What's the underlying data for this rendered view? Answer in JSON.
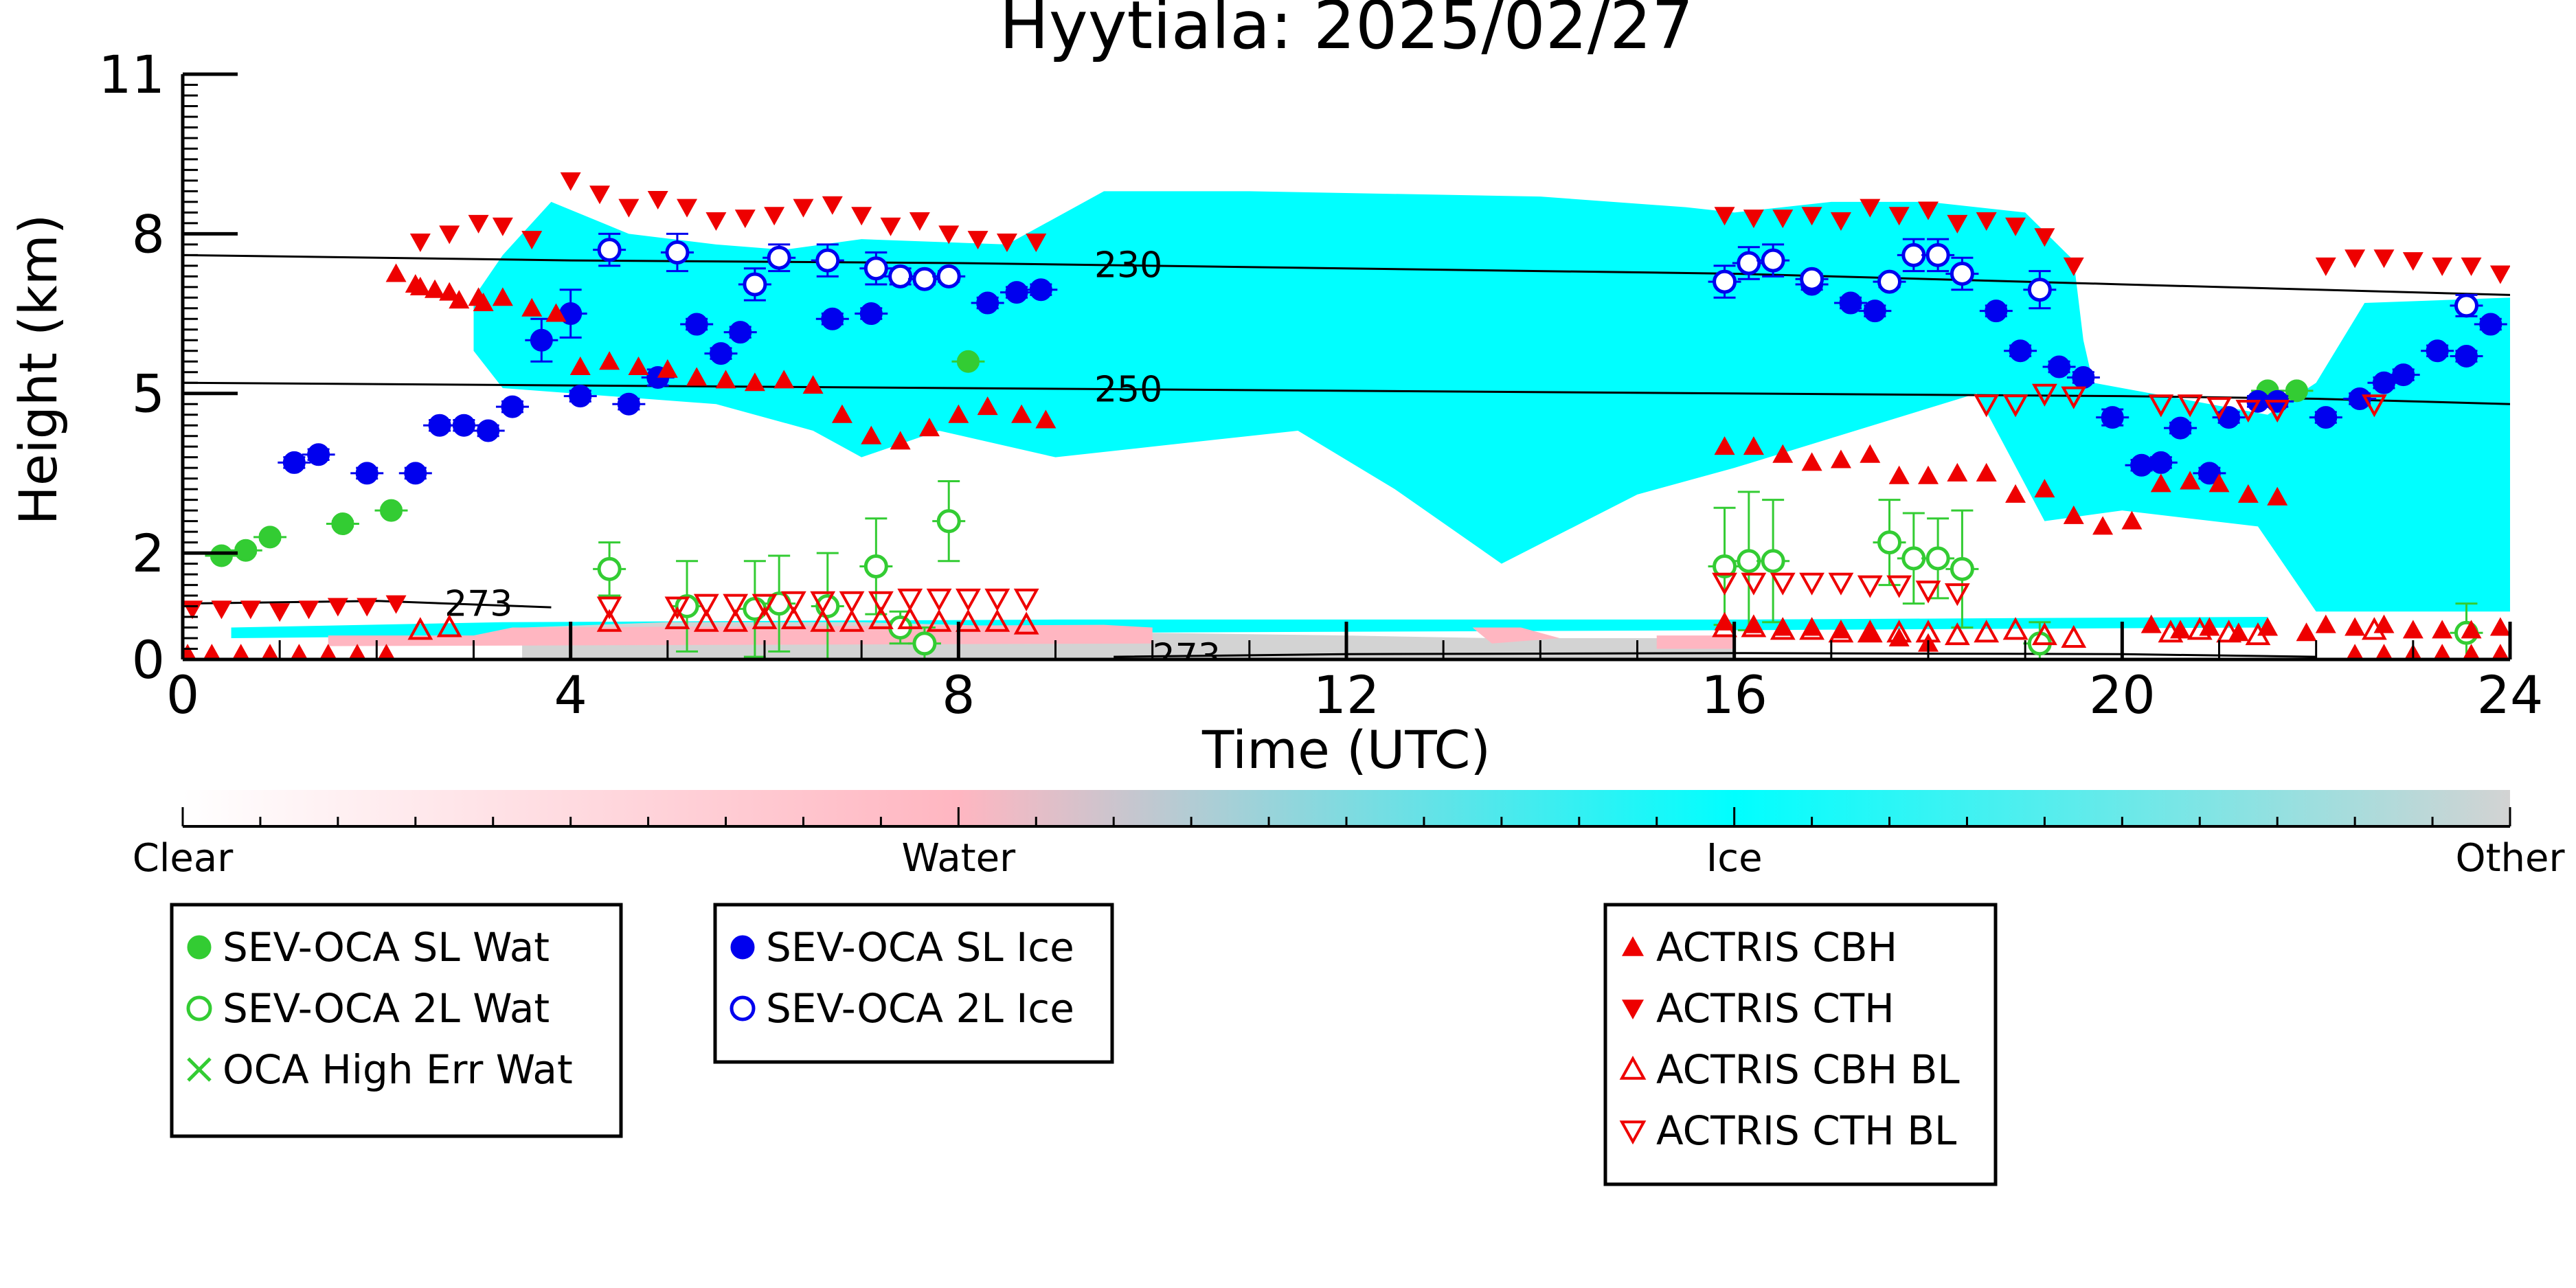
{
  "chart_data": {
    "type": "scatter",
    "title": "Hyytiala: 2025/02/27",
    "xlabel": "Time (UTC)",
    "ylabel": "Height (km)",
    "xlim": [
      0,
      24
    ],
    "ylim": [
      0,
      11
    ],
    "xticks": [
      0,
      4,
      8,
      12,
      16,
      20,
      24
    ],
    "yticks": [
      0,
      2,
      5,
      8,
      11
    ],
    "background_field": {
      "type": "cloud phase",
      "ice_regions": [
        [
          [
            0.5,
            0.6
          ],
          [
            3.3,
            0.7
          ],
          [
            9,
            0.75
          ],
          [
            16,
            0.75
          ],
          [
            21.5,
            0.8
          ],
          [
            21.5,
            0.6
          ],
          [
            16,
            0.55
          ],
          [
            9,
            0.5
          ],
          [
            3.3,
            0.45
          ],
          [
            0.5,
            0.4
          ]
        ],
        [
          [
            3,
            6.8
          ],
          [
            3.3,
            7.6
          ],
          [
            3.8,
            8.6
          ],
          [
            4.6,
            8.0
          ],
          [
            5.5,
            7.8
          ],
          [
            6.2,
            7.7
          ],
          [
            7,
            7.9
          ],
          [
            8.5,
            7.8
          ],
          [
            9.5,
            8.8
          ],
          [
            11,
            8.8
          ],
          [
            14,
            8.7
          ],
          [
            15.5,
            8.5
          ],
          [
            16,
            8.4
          ],
          [
            17,
            8.6
          ],
          [
            18,
            8.6
          ],
          [
            19,
            8.4
          ],
          [
            19.5,
            7.5
          ],
          [
            19.6,
            6.0
          ],
          [
            19.7,
            5.2
          ],
          [
            21.5,
            4.6
          ],
          [
            22,
            5.2
          ],
          [
            22.5,
            6.7
          ],
          [
            24,
            6.8
          ],
          [
            24,
            0.9
          ],
          [
            22,
            0.9
          ],
          [
            21.4,
            2.5
          ],
          [
            20,
            2.8
          ],
          [
            19.2,
            2.6
          ],
          [
            18.5,
            5.0
          ],
          [
            16,
            3.6
          ],
          [
            15,
            3.1
          ],
          [
            13.6,
            1.8
          ],
          [
            12.5,
            3.2
          ],
          [
            11.5,
            4.3
          ],
          [
            10,
            4.0
          ],
          [
            9,
            3.8
          ],
          [
            7.8,
            4.3
          ],
          [
            7,
            3.8
          ],
          [
            6.5,
            4.3
          ],
          [
            5.5,
            4.8
          ],
          [
            3.3,
            5.1
          ],
          [
            3,
            5.8
          ]
        ]
      ],
      "water_regions": [
        [
          [
            1.5,
            0.45
          ],
          [
            3,
            0.45
          ],
          [
            3.4,
            0.6
          ],
          [
            9.5,
            0.65
          ],
          [
            10,
            0.6
          ],
          [
            10,
            0.3
          ],
          [
            1.5,
            0.25
          ]
        ],
        [
          [
            13.3,
            0.6
          ],
          [
            13.8,
            0.6
          ],
          [
            14.2,
            0.4
          ],
          [
            13.5,
            0.3
          ]
        ],
        [
          [
            15.2,
            0.45
          ],
          [
            16,
            0.45
          ],
          [
            16,
            0.2
          ],
          [
            15.2,
            0.2
          ]
        ]
      ],
      "other_regions": [
        [
          [
            3.5,
            0.6
          ],
          [
            5,
            0.7
          ],
          [
            7,
            0.7
          ],
          [
            9,
            0.6
          ],
          [
            10,
            0.5
          ],
          [
            12,
            0.45
          ],
          [
            13.5,
            0.4
          ],
          [
            16,
            0.4
          ],
          [
            16,
            0.0
          ],
          [
            3.5,
            0.0
          ]
        ]
      ]
    },
    "contours": [
      {
        "label": "230",
        "label_x": 9.4,
        "points": [
          [
            0,
            7.6
          ],
          [
            4,
            7.5
          ],
          [
            8,
            7.45
          ],
          [
            12,
            7.35
          ],
          [
            16,
            7.25
          ],
          [
            20,
            7.05
          ],
          [
            24,
            6.85
          ]
        ]
      },
      {
        "label": "250",
        "label_x": 9.4,
        "points": [
          [
            0,
            5.2
          ],
          [
            4,
            5.15
          ],
          [
            8,
            5.1
          ],
          [
            12,
            5.05
          ],
          [
            16,
            5.0
          ],
          [
            20,
            4.95
          ],
          [
            22,
            4.9
          ],
          [
            24,
            4.8
          ]
        ]
      },
      {
        "label": "273",
        "label_x": 2.7,
        "points": [
          [
            0,
            1.05
          ],
          [
            2,
            1.1
          ],
          [
            3.8,
            0.98
          ]
        ]
      },
      {
        "label": "273",
        "label_x": 10.0,
        "points": [
          [
            9.6,
            0.05
          ],
          [
            12,
            0.1
          ],
          [
            16,
            0.12
          ],
          [
            20,
            0.1
          ],
          [
            22,
            0.05
          ]
        ]
      }
    ],
    "series": [
      {
        "name": "SEV-OCA SL Wat",
        "marker": "filled-circle",
        "color": "#33cc33",
        "x": [
          0.4,
          0.65,
          0.9,
          1.65,
          2.15,
          8.1,
          21.5,
          21.8
        ],
        "y": [
          1.95,
          2.05,
          2.3,
          2.55,
          2.8,
          5.6,
          5.05,
          5.05
        ],
        "err": [
          0.05,
          0.05,
          0.05,
          0.05,
          0.05,
          0.05,
          0.05,
          0.05
        ]
      },
      {
        "name": "SEV-OCA 2L Wat",
        "marker": "open-circle",
        "color": "#33cc33",
        "x": [
          4.4,
          5.2,
          5.9,
          6.15,
          6.65,
          7.15,
          7.4,
          7.65,
          7.9,
          15.9,
          16.15,
          16.4,
          17.6,
          17.85,
          18.1,
          18.35,
          19.15,
          23.55
        ],
        "y": [
          1.7,
          1.0,
          0.95,
          1.05,
          1.0,
          1.75,
          0.6,
          0.3,
          2.6,
          1.75,
          1.85,
          1.85,
          2.2,
          1.9,
          1.9,
          1.7,
          0.3,
          0.5
        ],
        "err": [
          0.5,
          0.85,
          0.9,
          0.9,
          1.0,
          0.9,
          0.3,
          0.3,
          0.75,
          1.1,
          1.3,
          1.15,
          0.8,
          0.85,
          0.75,
          1.1,
          0.4,
          0.55
        ]
      },
      {
        "name": "OCA High Err Wat",
        "marker": "x",
        "color": "#33cc33",
        "x": [],
        "y": []
      },
      {
        "name": "SEV-OCA SL Ice",
        "marker": "filled-circle",
        "color": "#0000ee",
        "x": [
          1.15,
          1.4,
          1.9,
          2.4,
          2.65,
          2.9,
          3.15,
          3.4,
          3.7,
          4.0,
          4.1,
          4.6,
          4.9,
          5.3,
          5.55,
          5.75,
          6.7,
          7.1,
          8.3,
          8.6,
          8.85,
          16.8,
          17.2,
          17.45,
          18.7,
          18.95,
          19.35,
          19.6,
          19.9,
          20.2,
          20.4,
          20.6,
          20.9,
          21.1,
          21.4,
          21.6,
          22.1,
          22.45,
          22.7,
          22.9,
          23.25,
          23.55,
          23.8
        ],
        "y": [
          3.7,
          3.85,
          3.5,
          3.5,
          4.4,
          4.4,
          4.3,
          4.75,
          6.0,
          6.5,
          4.95,
          4.8,
          5.3,
          6.3,
          5.75,
          6.15,
          6.4,
          6.5,
          6.7,
          6.9,
          6.95,
          7.05,
          6.7,
          6.55,
          6.55,
          5.8,
          5.5,
          5.3,
          4.55,
          3.65,
          3.7,
          4.35,
          3.5,
          4.55,
          4.85,
          4.85,
          4.55,
          4.9,
          5.2,
          5.35,
          5.8,
          5.7,
          6.3
        ],
        "err": [
          0.1,
          0.1,
          0.1,
          0.1,
          0.1,
          0.1,
          0.1,
          0.1,
          0.4,
          0.45,
          0.1,
          0.1,
          0.15,
          0.1,
          0.1,
          0.1,
          0.1,
          0.1,
          0.1,
          0.1,
          0.1,
          0.1,
          0.1,
          0.1,
          0.1,
          0.1,
          0.1,
          0.1,
          0.15,
          0.1,
          0.1,
          0.1,
          0.1,
          0.1,
          0.1,
          0.1,
          0.1,
          0.1,
          0.1,
          0.1,
          0.1,
          0.1,
          0.1
        ]
      },
      {
        "name": "SEV-OCA 2L Ice",
        "marker": "open-circle",
        "color": "#0000ee",
        "x": [
          4.4,
          5.1,
          5.9,
          6.15,
          6.65,
          7.15,
          7.4,
          7.65,
          7.9,
          15.9,
          16.15,
          16.4,
          16.8,
          17.6,
          17.85,
          18.1,
          18.35,
          19.15,
          23.55
        ],
        "y": [
          7.7,
          7.65,
          7.05,
          7.55,
          7.5,
          7.35,
          7.2,
          7.15,
          7.2,
          7.1,
          7.45,
          7.5,
          7.15,
          7.1,
          7.6,
          7.6,
          7.25,
          6.95,
          6.65
        ],
        "err": [
          0.3,
          0.35,
          0.3,
          0.25,
          0.3,
          0.3,
          0.15,
          0.1,
          0.1,
          0.3,
          0.3,
          0.3,
          0.1,
          0.1,
          0.3,
          0.3,
          0.3,
          0.35,
          0.2
        ]
      },
      {
        "name": "ACTRIS CBH",
        "marker": "triangle-up",
        "color": "#ee0000",
        "x": [
          0.05,
          0.3,
          0.6,
          0.9,
          1.2,
          1.5,
          1.8,
          2.1,
          2.45,
          2.75,
          3.05,
          3.3,
          3.6,
          3.85,
          4.1,
          4.4,
          4.7,
          5.0,
          5.3,
          5.6,
          5.9,
          6.2,
          6.5,
          6.8,
          7.1,
          7.4,
          7.7,
          8.0,
          8.3,
          8.65,
          8.9,
          15.9,
          16.2,
          16.5,
          16.8,
          17.1,
          17.4,
          17.7,
          18.0,
          18.3,
          18.6,
          18.9,
          19.2,
          19.5,
          19.8,
          20.1,
          20.4,
          20.7,
          21.0,
          21.3,
          21.6,
          22.1,
          22.4,
          22.7,
          23.0,
          23.3,
          23.6,
          23.9,
          15.9,
          16.2,
          16.5,
          16.8,
          17.1,
          17.4,
          17.7,
          18.0,
          20.3,
          20.6,
          20.9,
          21.2,
          21.5,
          21.9,
          22.4,
          22.7,
          23.0,
          23.3,
          23.6,
          23.9,
          2.2,
          2.4,
          2.6,
          2.85,
          3.1
        ],
        "y": [
          0.1,
          0.1,
          0.1,
          0.1,
          0.1,
          0.1,
          0.1,
          0.1,
          7.0,
          6.9,
          6.8,
          6.8,
          6.6,
          6.5,
          5.5,
          5.6,
          5.5,
          5.45,
          5.3,
          5.25,
          5.2,
          5.25,
          5.15,
          4.6,
          4.2,
          4.1,
          4.35,
          4.6,
          4.75,
          4.6,
          4.5,
          4.0,
          4.0,
          3.85,
          3.7,
          3.75,
          3.85,
          3.45,
          3.45,
          3.5,
          3.5,
          3.1,
          3.2,
          2.7,
          2.5,
          2.6,
          3.3,
          3.35,
          3.3,
          3.1,
          3.05,
          0.65,
          0.1,
          0.1,
          0.1,
          0.1,
          0.1,
          0.1,
          0.7,
          0.65,
          0.6,
          0.6,
          0.55,
          0.5,
          0.4,
          0.3,
          0.65,
          0.55,
          0.6,
          0.5,
          0.6,
          0.5,
          0.6,
          0.65,
          0.55,
          0.55,
          0.55,
          0.6,
          7.25,
          7.05,
          6.95,
          6.75,
          6.7
        ],
        "err": []
      },
      {
        "name": "ACTRIS CTH",
        "marker": "triangle-down",
        "color": "#ee0000",
        "x": [
          0.1,
          0.4,
          0.7,
          1.0,
          1.3,
          1.6,
          1.9,
          2.2,
          2.45,
          2.75,
          3.05,
          3.3,
          3.6,
          4.0,
          4.3,
          4.6,
          4.9,
          5.2,
          5.5,
          5.8,
          6.1,
          6.4,
          6.7,
          7.0,
          7.3,
          7.6,
          7.9,
          8.2,
          8.5,
          8.8,
          15.9,
          16.2,
          16.5,
          16.8,
          17.1,
          17.4,
          17.7,
          18.0,
          18.3,
          18.6,
          18.9,
          19.2,
          19.5,
          22.1,
          22.4,
          22.7,
          23.0,
          23.3,
          23.6,
          23.9
        ],
        "y": [
          0.95,
          0.95,
          0.95,
          0.9,
          0.95,
          1.0,
          1.0,
          1.05,
          7.85,
          8.0,
          8.2,
          8.15,
          7.9,
          9.0,
          8.75,
          8.5,
          8.65,
          8.5,
          8.25,
          8.3,
          8.35,
          8.5,
          8.55,
          8.35,
          8.15,
          8.25,
          8.0,
          7.9,
          7.85,
          7.85,
          8.35,
          8.3,
          8.3,
          8.35,
          8.25,
          8.5,
          8.35,
          8.45,
          8.2,
          8.25,
          8.15,
          7.95,
          7.4,
          7.4,
          7.55,
          7.55,
          7.5,
          7.4,
          7.4,
          7.25
        ],
        "err": []
      },
      {
        "name": "ACTRIS CBH BL",
        "marker": "open-triangle-up",
        "color": "#ee0000",
        "x": [
          2.45,
          2.75,
          4.4,
          5.1,
          5.4,
          5.7,
          6.0,
          6.3,
          6.6,
          6.9,
          7.2,
          7.5,
          7.8,
          8.1,
          8.4,
          8.7,
          15.9,
          16.2,
          16.5,
          16.8,
          17.1,
          17.4,
          17.7,
          18.0,
          18.3,
          18.6,
          18.9,
          19.2,
          19.5,
          20.5,
          20.8,
          21.1,
          21.4,
          22.6
        ],
        "y": [
          0.55,
          0.6,
          0.7,
          0.75,
          0.7,
          0.7,
          0.75,
          0.75,
          0.7,
          0.7,
          0.75,
          0.75,
          0.7,
          0.7,
          0.7,
          0.65,
          0.6,
          0.6,
          0.55,
          0.55,
          0.5,
          0.5,
          0.5,
          0.5,
          0.45,
          0.5,
          0.55,
          0.45,
          0.4,
          0.5,
          0.55,
          0.5,
          0.45,
          0.55
        ],
        "err": []
      },
      {
        "name": "ACTRIS CTH BL",
        "marker": "open-triangle-down",
        "color": "#ee0000",
        "x": [
          4.4,
          5.1,
          5.4,
          5.7,
          6.0,
          6.3,
          6.6,
          6.9,
          7.2,
          7.5,
          7.8,
          8.1,
          8.4,
          8.7,
          15.9,
          16.2,
          16.5,
          16.8,
          17.1,
          17.4,
          17.7,
          18.0,
          18.3,
          18.6,
          18.9,
          19.2,
          19.5,
          20.4,
          20.7,
          21.0,
          21.3,
          21.6,
          22.6
        ],
        "y": [
          1.0,
          1.0,
          1.05,
          1.05,
          1.05,
          1.1,
          1.1,
          1.1,
          1.1,
          1.15,
          1.15,
          1.15,
          1.15,
          1.15,
          1.45,
          1.45,
          1.45,
          1.45,
          1.45,
          1.4,
          1.4,
          1.3,
          1.25,
          4.8,
          4.8,
          5.0,
          4.95,
          4.8,
          4.8,
          4.75,
          4.7,
          4.7,
          4.8
        ],
        "err": []
      }
    ],
    "colorbar": {
      "labels": [
        "Clear",
        "Water",
        "Ice",
        "Other"
      ],
      "stops": [
        [
          "Clear",
          "#ffffff"
        ],
        [
          "Water",
          "#ffb6c1"
        ],
        [
          "Ice",
          "#00ffff"
        ],
        [
          "Other",
          "#d3d3d3"
        ]
      ]
    },
    "legend_boxes": [
      [
        "SEV-OCA SL Wat",
        "SEV-OCA 2L Wat",
        "OCA High Err Wat"
      ],
      [
        "SEV-OCA SL Ice",
        "SEV-OCA 2L Ice"
      ],
      [
        "ACTRIS CBH",
        "ACTRIS CTH",
        "ACTRIS CBH BL",
        "ACTRIS CTH BL"
      ]
    ],
    "colors": {
      "ice": "#00ffff",
      "water": "#ffb6c1",
      "other": "#d3d3d3",
      "sev_water": "#33cc33",
      "sev_ice": "#0000ee",
      "actris": "#ee0000"
    }
  }
}
